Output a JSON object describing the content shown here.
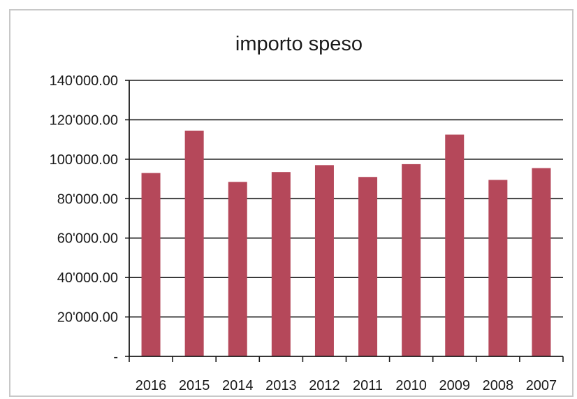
{
  "chart_data": {
    "type": "bar",
    "title": "importo speso",
    "xlabel": "",
    "ylabel": "",
    "categories": [
      "2016",
      "2015",
      "2014",
      "2013",
      "2012",
      "2011",
      "2010",
      "2009",
      "2008",
      "2007"
    ],
    "series": [
      {
        "values": [
          93000,
          114500,
          88500,
          93500,
          97000,
          91000,
          97500,
          112500,
          89500,
          95500
        ]
      }
    ],
    "ylim": [
      0,
      140000
    ],
    "yticks": [
      0,
      20000,
      40000,
      60000,
      80000,
      100000,
      120000,
      140000
    ],
    "ytick_labels": [
      "-",
      "20'000.00",
      "40'000.00",
      "60'000.00",
      "80'000.00",
      "100'000.00",
      "120'000.00",
      "140'000.00"
    ],
    "grid": true,
    "legend": "none",
    "colors": {
      "bar": "#b5485a",
      "grid": "#1a1a1a",
      "axis": "#1a1a1a"
    }
  }
}
